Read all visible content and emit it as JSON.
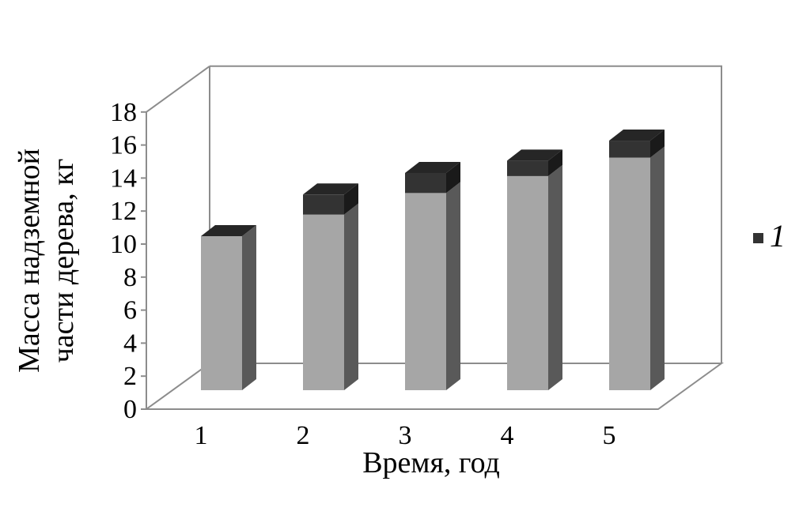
{
  "chart_data": {
    "type": "bar",
    "stacked": true,
    "three_d": true,
    "categories": [
      "1",
      "2",
      "3",
      "4",
      "5"
    ],
    "series": [
      {
        "values": [
          10,
          11.4,
          12.8,
          13.9,
          15.1
        ],
        "color": "#a6a6a6"
      },
      {
        "name": "1",
        "values": [
          0,
          1.3,
          1.3,
          1.0,
          1.1
        ],
        "color": "#333333"
      }
    ],
    "xlabel": "Время, год",
    "ylabel": [
      "Масса надземной",
      "части дерева, кг"
    ],
    "ylim": [
      0,
      18
    ],
    "yticks": [
      "0",
      "2",
      "4",
      "6",
      "8",
      "10",
      "12",
      "14",
      "16",
      "18"
    ],
    "grid": false,
    "legend": "right"
  }
}
